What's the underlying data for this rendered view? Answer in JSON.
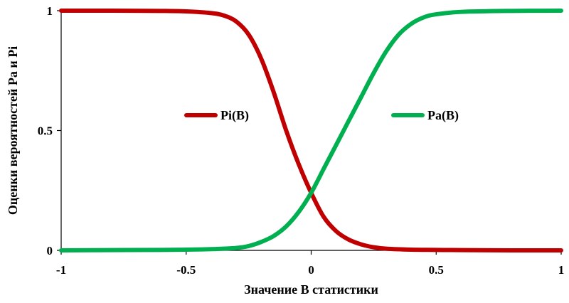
{
  "chart_data": {
    "type": "line",
    "xlabel": "Значение B статистики",
    "ylabel": "Оценки вероятностей Pa и Pi",
    "xlim": [
      -1,
      1
    ],
    "ylim": [
      0,
      1
    ],
    "x_ticks": [
      "-1",
      "-0.5",
      "0",
      "0.5",
      "1"
    ],
    "y_ticks": [
      "0",
      "0.5",
      "1"
    ],
    "grid": false,
    "series": [
      {
        "name": "Pi(B)",
        "color": "#c00000",
        "x": [
          -1,
          -0.8,
          -0.6,
          -0.5,
          -0.4,
          -0.35,
          -0.3,
          -0.25,
          -0.2,
          -0.15,
          -0.1,
          -0.05,
          0,
          0.05,
          0.1,
          0.15,
          0.2,
          0.25,
          0.3,
          0.4,
          0.5,
          0.6,
          0.8,
          1
        ],
        "y": [
          1.0,
          1.0,
          0.999,
          0.997,
          0.99,
          0.98,
          0.955,
          0.9,
          0.8,
          0.66,
          0.5,
          0.36,
          0.24,
          0.14,
          0.08,
          0.045,
          0.025,
          0.013,
          0.007,
          0.003,
          0.002,
          0.001,
          0.0,
          0.0
        ]
      },
      {
        "name": "Pa(B)",
        "color": "#00b050",
        "x": [
          -1,
          -0.8,
          -0.6,
          -0.5,
          -0.4,
          -0.3,
          -0.25,
          -0.2,
          -0.15,
          -0.1,
          -0.05,
          0,
          0.05,
          0.1,
          0.15,
          0.2,
          0.25,
          0.3,
          0.35,
          0.4,
          0.45,
          0.5,
          0.6,
          0.8,
          1
        ],
        "y": [
          0.0,
          0.001,
          0.002,
          0.003,
          0.005,
          0.01,
          0.018,
          0.035,
          0.06,
          0.1,
          0.16,
          0.24,
          0.34,
          0.44,
          0.54,
          0.64,
          0.74,
          0.83,
          0.9,
          0.945,
          0.972,
          0.985,
          0.995,
          0.999,
          1.0
        ]
      }
    ]
  }
}
